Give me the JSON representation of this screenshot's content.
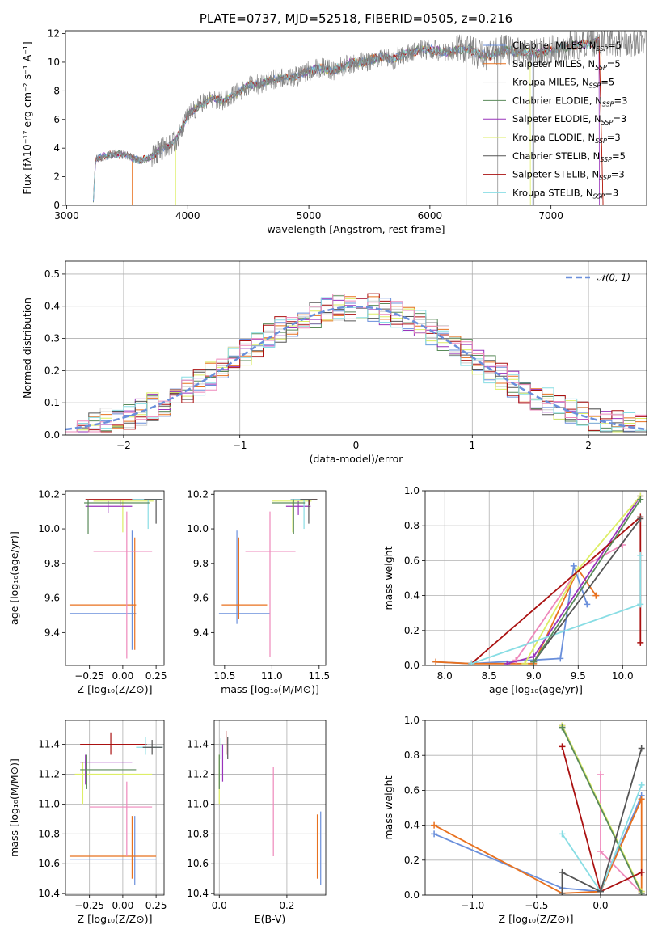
{
  "colors": {
    "c1": "#6a8fdb",
    "c2": "#e8711f",
    "c3": "#d0d0d0",
    "c4": "#5a8a5a",
    "c5": "#9933bb",
    "c6": "#ddee66",
    "c7": "#555555",
    "c8": "#aa1111",
    "c9": "#88dde4",
    "pink": "#ee88bb",
    "gray": "#808080"
  },
  "chart_data": [
    {
      "id": "spectrum",
      "type": "line",
      "title": "PLATE=0737, MJD=52518, FIBERID=0505, z=0.216",
      "xlabel": "wavelength [Angstrom, rest frame]",
      "ylabel": "Flux [fλ10⁻¹⁷ erg cm⁻² s⁻¹ A⁻¹]",
      "xlim": [
        2990,
        7790
      ],
      "ylim": [
        0,
        12.2
      ],
      "xticks": [
        "3000",
        "4000",
        "5000",
        "6000",
        "7000"
      ],
      "yticks": [
        "0",
        "2",
        "4",
        "6",
        "8",
        "10",
        "12"
      ],
      "grid": false,
      "legend": [
        "Chabrier MILES, N_SSP=5",
        "Salpeter MILES, N_SSP=5",
        "Kroupa MILES, N_SSP=5",
        "Chabrier ELODIE, N_SSP=3",
        "Salpeter ELODIE, N_SSP=3",
        "Kroupa ELODIE, N_SSP=3",
        "Chabrier STELIB, N_SSP=5",
        "Salpeter STELIB, N_SSP=3",
        "Kroupa STELIB, N_SSP=3"
      ],
      "legend_placement": "right",
      "envelope": [
        [
          3220,
          0.5
        ],
        [
          3240,
          3.2
        ],
        [
          3300,
          3.4
        ],
        [
          3400,
          3.6
        ],
        [
          3500,
          3.5
        ],
        [
          3600,
          3.1
        ],
        [
          3700,
          3.4
        ],
        [
          3800,
          4.0
        ],
        [
          3900,
          4.5
        ],
        [
          4000,
          6.3
        ],
        [
          4100,
          7.0
        ],
        [
          4200,
          7.5
        ],
        [
          4300,
          7.3
        ],
        [
          4400,
          7.8
        ],
        [
          4500,
          8.4
        ],
        [
          4600,
          8.5
        ],
        [
          4700,
          8.8
        ],
        [
          4800,
          8.9
        ],
        [
          4900,
          9.0
        ],
        [
          5000,
          9.4
        ],
        [
          5100,
          9.6
        ],
        [
          5200,
          9.4
        ],
        [
          5300,
          9.8
        ],
        [
          5400,
          10.0
        ],
        [
          5500,
          10.1
        ],
        [
          5600,
          10.4
        ],
        [
          5700,
          10.2
        ],
        [
          5800,
          10.6
        ],
        [
          5900,
          10.8
        ],
        [
          6000,
          10.9
        ],
        [
          6100,
          10.7
        ],
        [
          6200,
          10.8
        ],
        [
          6300,
          11.0
        ],
        [
          6400,
          10.6
        ],
        [
          6500,
          10.4
        ],
        [
          6600,
          10.9
        ],
        [
          6700,
          10.7
        ],
        [
          6800,
          10.7
        ],
        [
          6900,
          10.6
        ],
        [
          7000,
          10.9
        ],
        [
          7100,
          11.0
        ],
        [
          7200,
          11.2
        ],
        [
          7300,
          11.3
        ],
        [
          7400,
          11.6
        ]
      ]
    },
    {
      "id": "residuals",
      "type": "histogram",
      "xlabel": "(data-model)/error",
      "ylabel": "Normed distribution",
      "xlim": [
        -2.5,
        2.5
      ],
      "ylim": [
        0,
        0.54
      ],
      "xticks": [
        -2,
        -1,
        0,
        1,
        2
      ],
      "xtick_labels": [
        "−2",
        "−1",
        "0",
        "1",
        "2"
      ],
      "yticks": [
        "0.0",
        "0.1",
        "0.2",
        "0.3",
        "0.4",
        "0.5"
      ],
      "grid": true,
      "legend": [
        "𝒩(0, 1)"
      ],
      "legend_placement": "top-right",
      "bin_width": 0.1
    },
    {
      "id": "age_Z",
      "type": "scatter",
      "xlabel": "Z [log₁₀(Z/Z⊙)]",
      "ylabel": "age  [log₁₀(age/yr)]",
      "xlim": [
        -0.43,
        0.31
      ],
      "ylim": [
        9.21,
        10.22
      ],
      "xticks": [
        -0.25,
        0.0,
        0.25
      ],
      "xtick_labels": [
        "−0.25",
        "0.00",
        "0.25"
      ],
      "yticks": [
        9.4,
        9.6,
        9.8,
        10.0,
        10.2
      ],
      "ytick_labels": [
        "9.4",
        "9.6",
        "9.8",
        "10.0",
        "10.2"
      ],
      "grid": false,
      "points": [
        {
          "c": "c1",
          "x": 0.07,
          "xe": [
            -0.4,
            0.1
          ],
          "y": 9.51,
          "ye": [
            9.3,
            9.99
          ]
        },
        {
          "c": "c2",
          "x": 0.09,
          "xe": [
            -0.4,
            0.1
          ],
          "y": 9.56,
          "ye": [
            9.3,
            9.95
          ]
        },
        {
          "c": "pink",
          "x": 0.03,
          "xe": [
            -0.22,
            0.22
          ],
          "y": 9.87,
          "ye": [
            9.25,
            10.1
          ]
        },
        {
          "c": "c6",
          "x": 0.0,
          "xe": [
            -0.22,
            0.23
          ],
          "y": 10.16,
          "ye": [
            9.98,
            10.17
          ]
        },
        {
          "c": "c5",
          "x": -0.11,
          "xe": [
            -0.28,
            0.07
          ],
          "y": 10.13,
          "ye": [
            10.09,
            10.16
          ]
        },
        {
          "c": "c8",
          "x": -0.02,
          "xe": [
            -0.28,
            0.18
          ],
          "y": 10.17,
          "ye": [
            10.14,
            10.17
          ]
        },
        {
          "c": "c9",
          "x": 0.19,
          "xe": [
            0.07,
            0.3
          ],
          "y": 10.17,
          "ye": [
            10.0,
            10.17
          ]
        },
        {
          "c": "c7",
          "x": 0.25,
          "xe": [
            0.16,
            0.3
          ],
          "y": 10.17,
          "ye": [
            10.03,
            10.17
          ]
        },
        {
          "c": "c4",
          "x": -0.26,
          "xe": [
            -0.29,
            0.2
          ],
          "y": 10.15,
          "ye": [
            9.97,
            10.17
          ]
        }
      ]
    },
    {
      "id": "age_mass",
      "type": "scatter",
      "xlabel": "mass [log₁₀(M/M⊙)]",
      "ylabel": "",
      "xlim": [
        10.39,
        11.57
      ],
      "ylim": [
        9.21,
        10.22
      ],
      "xticks": [
        10.5,
        11.0,
        11.5
      ],
      "xtick_labels": [
        "10.5",
        "11.0",
        "11.5"
      ],
      "yticks": [
        9.4,
        9.6,
        9.8,
        10.0,
        10.2
      ],
      "ytick_labels": [
        "9.4",
        "9.6",
        "9.8",
        "10.0",
        "10.2"
      ],
      "grid": false,
      "points": [
        {
          "c": "c1",
          "x": 10.63,
          "xe": [
            10.44,
            10.98
          ],
          "y": 9.51,
          "ye": [
            9.45,
            9.99
          ]
        },
        {
          "c": "c2",
          "x": 10.65,
          "xe": [
            10.47,
            10.95
          ],
          "y": 9.56,
          "ye": [
            9.48,
            9.95
          ]
        },
        {
          "c": "pink",
          "x": 10.98,
          "xe": [
            10.72,
            11.25
          ],
          "y": 9.87,
          "ye": [
            9.26,
            10.1
          ]
        },
        {
          "c": "c6",
          "x": 11.22,
          "xe": [
            11.0,
            11.42
          ],
          "y": 10.16,
          "ye": [
            9.98,
            10.17
          ]
        },
        {
          "c": "c5",
          "x": 11.28,
          "xe": [
            11.15,
            11.41
          ],
          "y": 10.13,
          "ye": [
            10.08,
            10.16
          ]
        },
        {
          "c": "c8",
          "x": 11.4,
          "xe": [
            11.2,
            11.48
          ],
          "y": 10.17,
          "ye": [
            10.14,
            10.17
          ]
        },
        {
          "c": "c9",
          "x": 11.34,
          "xe": [
            11.2,
            11.42
          ],
          "y": 10.17,
          "ye": [
            10.0,
            10.17
          ]
        },
        {
          "c": "c7",
          "x": 11.39,
          "xe": [
            11.3,
            11.48
          ],
          "y": 10.17,
          "ye": [
            10.03,
            10.17
          ]
        },
        {
          "c": "c4",
          "x": 11.23,
          "xe": [
            11.0,
            11.35
          ],
          "y": 10.15,
          "ye": [
            9.97,
            10.17
          ]
        }
      ]
    },
    {
      "id": "mw_age",
      "type": "line",
      "xlabel": "age  [log₁₀(age/yr)]",
      "ylabel": "mass weight",
      "xlim": [
        7.78,
        10.27
      ],
      "ylim": [
        0,
        1
      ],
      "xticks": [
        8.0,
        8.5,
        9.0,
        9.5,
        10.0
      ],
      "xtick_labels": [
        "8.0",
        "8.5",
        "9.0",
        "9.5",
        "10.0"
      ],
      "yticks": [
        0,
        0.2,
        0.4,
        0.6,
        0.8,
        1.0
      ],
      "ytick_labels": [
        "0.0",
        "0.2",
        "0.4",
        "0.6",
        "0.8",
        "1.0"
      ],
      "grid": true,
      "series": [
        {
          "c": "c1",
          "x": [
            7.9,
            8.3,
            9.3,
            9.45,
            9.6
          ],
          "y": [
            0.02,
            0.01,
            0.04,
            0.57,
            0.35
          ]
        },
        {
          "c": "c2",
          "x": [
            7.9,
            8.3,
            9.0,
            9.5,
            9.7
          ],
          "y": [
            0.02,
            0.01,
            0.01,
            0.55,
            0.4
          ]
        },
        {
          "c": "pink",
          "x": [
            8.8,
            9.5,
            10.0
          ],
          "y": [
            0.03,
            0.55,
            0.69
          ]
        },
        {
          "c": "c5",
          "x": [
            8.7,
            9.0,
            10.2
          ],
          "y": [
            0.01,
            0.05,
            0.97
          ]
        },
        {
          "c": "c6",
          "x": [
            8.9,
            9.5,
            10.2
          ],
          "y": [
            0.01,
            0.55,
            0.97
          ]
        },
        {
          "c": "c8",
          "x": [
            8.3,
            10.2,
            10.2
          ],
          "y": [
            0.01,
            0.85,
            0.13
          ]
        },
        {
          "c": "c9",
          "x": [
            8.3,
            10.2,
            10.2
          ],
          "y": [
            0.01,
            0.35,
            0.63
          ]
        },
        {
          "c": "c7",
          "x": [
            9.0,
            10.2
          ],
          "y": [
            0.02,
            0.84
          ]
        },
        {
          "c": "c4",
          "x": [
            9.0,
            10.2
          ],
          "y": [
            0.02,
            0.95
          ]
        }
      ]
    },
    {
      "id": "mass_Z",
      "type": "scatter",
      "xlabel": "Z [log₁₀(Z/Z⊙)]",
      "ylabel": "mass [log₁₀(M/M⊙)]",
      "xlim": [
        -0.43,
        0.31
      ],
      "ylim": [
        10.39,
        11.56
      ],
      "xticks": [
        -0.25,
        0.0,
        0.25
      ],
      "xtick_labels": [
        "−0.25",
        "0.00",
        "0.25"
      ],
      "yticks": [
        10.4,
        10.6,
        10.8,
        11.0,
        11.2,
        11.4
      ],
      "ytick_labels": [
        "10.4",
        "10.6",
        "10.8",
        "11.0",
        "11.2",
        "11.4"
      ],
      "grid": true,
      "points": [
        {
          "c": "c1",
          "x": 0.09,
          "xe": [
            -0.4,
            0.25
          ],
          "y": 10.63,
          "ye": [
            10.46,
            10.92
          ]
        },
        {
          "c": "c2",
          "x": 0.07,
          "xe": [
            -0.4,
            0.25
          ],
          "y": 10.65,
          "ye": [
            10.5,
            10.92
          ]
        },
        {
          "c": "pink",
          "x": 0.03,
          "xe": [
            -0.25,
            0.22
          ],
          "y": 10.98,
          "ye": [
            10.65,
            11.15
          ]
        },
        {
          "c": "c6",
          "x": -0.3,
          "xe": [
            -0.36,
            0.22
          ],
          "y": 11.2,
          "ye": [
            11.0,
            11.28
          ]
        },
        {
          "c": "c5",
          "x": -0.28,
          "xe": [
            -0.32,
            0.07
          ],
          "y": 11.28,
          "ye": [
            11.13,
            11.33
          ]
        },
        {
          "c": "c8",
          "x": -0.09,
          "xe": [
            -0.32,
            0.18
          ],
          "y": 11.4,
          "ye": [
            11.33,
            11.48
          ]
        },
        {
          "c": "c9",
          "x": 0.17,
          "xe": [
            0.1,
            0.3
          ],
          "y": 11.38,
          "ye": [
            11.33,
            11.45
          ]
        },
        {
          "c": "c7",
          "x": 0.22,
          "xe": [
            0.15,
            0.3
          ],
          "y": 11.38,
          "ye": [
            11.33,
            11.43
          ]
        },
        {
          "c": "c4",
          "x": -0.27,
          "xe": [
            -0.32,
            0.1
          ],
          "y": 11.23,
          "ye": [
            11.1,
            11.33
          ]
        }
      ]
    },
    {
      "id": "mass_EBV",
      "type": "scatter",
      "xlabel": "E(B-V)",
      "ylabel": "",
      "xlim": [
        -0.015,
        0.315
      ],
      "ylim": [
        10.39,
        11.56
      ],
      "xticks": [
        0.0,
        0.2
      ],
      "xtick_labels": [
        "0.0",
        "0.2"
      ],
      "yticks": [
        10.4,
        10.6,
        10.8,
        11.0,
        11.2,
        11.4
      ],
      "ytick_labels": [
        "10.4",
        "10.6",
        "10.8",
        "11.0",
        "11.2",
        "11.4"
      ],
      "grid": true,
      "points": [
        {
          "c": "c1",
          "x": 0.3,
          "y": 10.63,
          "ye": [
            10.46,
            10.95
          ]
        },
        {
          "c": "c2",
          "x": 0.29,
          "y": 10.65,
          "ye": [
            10.5,
            10.93
          ]
        },
        {
          "c": "pink",
          "x": 0.16,
          "y": 10.98,
          "ye": [
            10.65,
            11.25
          ]
        },
        {
          "c": "c6",
          "x": 0.0,
          "y": 11.2,
          "ye": [
            11.0,
            11.33
          ]
        },
        {
          "c": "c5",
          "x": 0.01,
          "y": 11.28,
          "ye": [
            11.15,
            11.4
          ]
        },
        {
          "c": "c8",
          "x": 0.02,
          "y": 11.4,
          "ye": [
            11.33,
            11.49
          ]
        },
        {
          "c": "c9",
          "x": 0.005,
          "y": 11.38,
          "ye": [
            11.3,
            11.44
          ]
        },
        {
          "c": "c7",
          "x": 0.025,
          "y": 11.38,
          "ye": [
            11.3,
            11.45
          ]
        },
        {
          "c": "c4",
          "x": 0.0,
          "y": 11.23,
          "ye": [
            11.1,
            11.33
          ]
        }
      ]
    },
    {
      "id": "mw_Z",
      "type": "line",
      "xlabel": "Z [log₁₀(Z/Z⊙)]",
      "ylabel": "mass weight",
      "xlim": [
        -1.37,
        0.36
      ],
      "ylim": [
        0,
        1
      ],
      "xticks": [
        -1.0,
        -0.5,
        0.0
      ],
      "xtick_labels": [
        "−1.0",
        "−0.5",
        "0.0"
      ],
      "yticks": [
        0,
        0.2,
        0.4,
        0.6,
        0.8,
        1.0
      ],
      "ytick_labels": [
        "0.0",
        "0.2",
        "0.4",
        "0.6",
        "0.8",
        "1.0"
      ],
      "grid": true,
      "series": [
        {
          "c": "c1",
          "x": [
            -1.3,
            -0.3,
            0.0,
            0.32
          ],
          "y": [
            0.35,
            0.04,
            0.02,
            0.57
          ]
        },
        {
          "c": "c2",
          "x": [
            -1.3,
            -0.3,
            0.0,
            0.32,
            0.32
          ],
          "y": [
            0.4,
            0.01,
            0.02,
            0.55,
            0.02
          ]
        },
        {
          "c": "pink",
          "x": [
            0.0,
            0.0,
            0.32
          ],
          "y": [
            0.69,
            0.25,
            0.01
          ]
        },
        {
          "c": "c5",
          "x": [
            -0.3,
            0.32
          ],
          "y": [
            0.97,
            0.01
          ]
        },
        {
          "c": "c6",
          "x": [
            -0.3,
            0.32
          ],
          "y": [
            0.97,
            0.02
          ]
        },
        {
          "c": "c4",
          "x": [
            -0.3,
            0.32
          ],
          "y": [
            0.96,
            0.01
          ]
        },
        {
          "c": "c8",
          "x": [
            -0.3,
            0.0,
            0.32
          ],
          "y": [
            0.85,
            0.02,
            0.13
          ]
        },
        {
          "c": "c9",
          "x": [
            -0.3,
            0.0,
            0.32
          ],
          "y": [
            0.35,
            0.02,
            0.63
          ]
        },
        {
          "c": "c7",
          "x": [
            -0.3,
            -0.3,
            0.0,
            0.32
          ],
          "y": [
            0.01,
            0.13,
            0.02,
            0.84
          ]
        }
      ]
    }
  ]
}
